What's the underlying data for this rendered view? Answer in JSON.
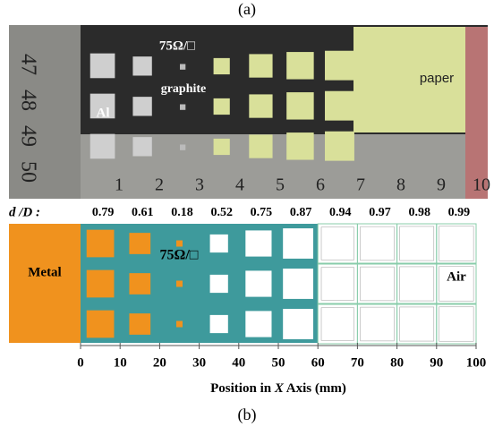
{
  "panel_a": {
    "label": "(a)",
    "photo_labels": {
      "sheet": "75Ω/□",
      "graphite": "graphite",
      "al": "Al",
      "paper": "paper"
    },
    "ruler_vertical": [
      "47",
      "48",
      "49",
      "50"
    ],
    "ruler_horizontal": [
      "1",
      "2",
      "3",
      "4",
      "5",
      "6",
      "7",
      "8",
      "9",
      "10"
    ]
  },
  "ratio_row": {
    "label": "d /D :",
    "values": [
      "0.79",
      "0.61",
      "0.18",
      "0.52",
      "0.75",
      "0.87",
      "0.94",
      "0.97",
      "0.98",
      "0.99"
    ]
  },
  "panel_b": {
    "label": "(b)",
    "metal_label": "Metal",
    "air_label": "Air",
    "sheet_label": "75Ω/□",
    "axis": {
      "xlim": [
        0,
        100
      ],
      "xticks": [
        0,
        10,
        20,
        30,
        40,
        50,
        60,
        70,
        80,
        90,
        100
      ],
      "title_parts": [
        "Position in ",
        "X",
        "  Axis (mm)"
      ]
    }
  }
}
